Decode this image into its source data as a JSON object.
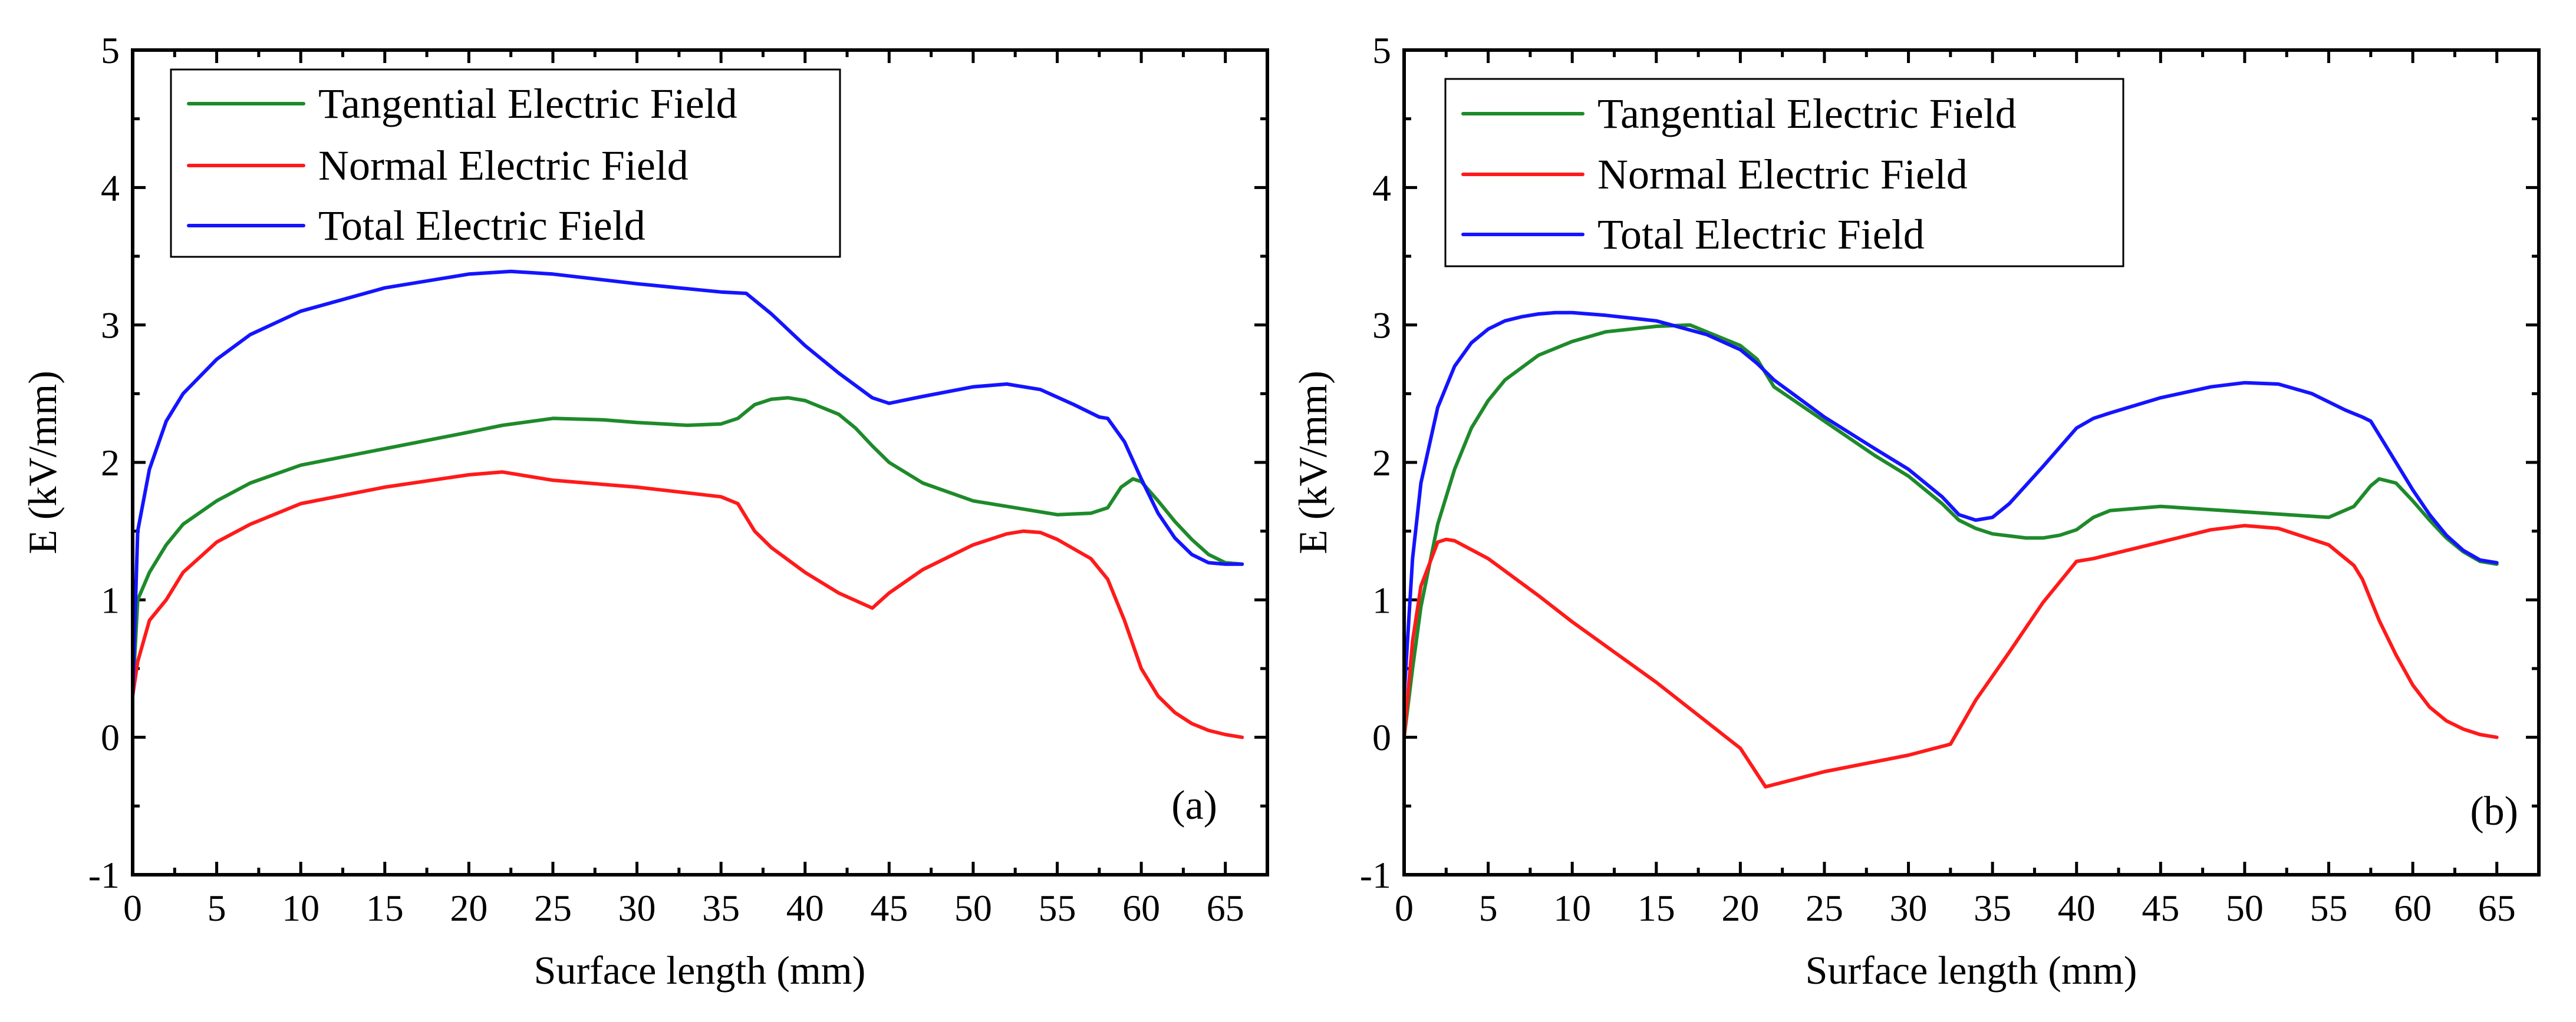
{
  "chart_data": [
    {
      "type": "line",
      "panel_label": "(a)",
      "xlabel": "Surface length (mm)",
      "ylabel": "E (kV/mm)",
      "xlim": [
        0,
        67.5
      ],
      "ylim": [
        -1,
        5
      ],
      "xticks": [
        0,
        5,
        10,
        15,
        20,
        25,
        30,
        35,
        40,
        45,
        50,
        55,
        60,
        65
      ],
      "yticks": [
        -1,
        0,
        1,
        2,
        3,
        4,
        5
      ],
      "legend_position": "top-left",
      "series": [
        {
          "name": "Tangential Electric Field",
          "color": "#1e8a2a",
          "x": [
            0,
            0.3,
            1,
            2,
            3,
            5,
            7,
            10,
            15,
            20,
            22,
            25,
            28,
            30,
            33,
            35,
            36,
            37,
            38,
            39,
            40,
            42,
            43,
            44,
            45,
            47,
            50,
            53,
            55,
            57,
            58,
            58.8,
            59.5,
            60,
            61,
            62,
            63,
            64,
            65,
            66
          ],
          "y": [
            0.3,
            1.0,
            1.2,
            1.4,
            1.55,
            1.72,
            1.85,
            1.98,
            2.1,
            2.22,
            2.27,
            2.32,
            2.31,
            2.29,
            2.27,
            2.28,
            2.32,
            2.42,
            2.46,
            2.47,
            2.45,
            2.35,
            2.25,
            2.12,
            2.0,
            1.85,
            1.72,
            1.66,
            1.62,
            1.63,
            1.67,
            1.82,
            1.88,
            1.86,
            1.72,
            1.57,
            1.44,
            1.33,
            1.27,
            1.26
          ]
        },
        {
          "name": "Normal Electric Field",
          "color": "#ff1a1a",
          "x": [
            0,
            0.3,
            1,
            2,
            3,
            5,
            7,
            10,
            15,
            20,
            22,
            25,
            30,
            35,
            36,
            37,
            38,
            40,
            42,
            44,
            45,
            47,
            50,
            52,
            53,
            54,
            55,
            57,
            58,
            59,
            60,
            61,
            62,
            63,
            64,
            65,
            66
          ],
          "y": [
            0.3,
            0.55,
            0.85,
            1.0,
            1.2,
            1.42,
            1.55,
            1.7,
            1.82,
            1.91,
            1.93,
            1.87,
            1.82,
            1.75,
            1.7,
            1.5,
            1.38,
            1.2,
            1.05,
            0.94,
            1.05,
            1.22,
            1.4,
            1.48,
            1.5,
            1.49,
            1.44,
            1.3,
            1.15,
            0.85,
            0.5,
            0.3,
            0.18,
            0.1,
            0.05,
            0.02,
            0.0
          ]
        },
        {
          "name": "Total Electric Field",
          "color": "#1414ff",
          "x": [
            0,
            0.3,
            1,
            2,
            3,
            5,
            7,
            10,
            15,
            20,
            22.5,
            25,
            30,
            35,
            36.5,
            38,
            40,
            42,
            44,
            45,
            47,
            50,
            52,
            54,
            56,
            57.5,
            58,
            59,
            60,
            61,
            62,
            63,
            64,
            65,
            66
          ],
          "y": [
            0.3,
            1.5,
            1.95,
            2.3,
            2.5,
            2.75,
            2.93,
            3.1,
            3.27,
            3.37,
            3.39,
            3.37,
            3.3,
            3.24,
            3.23,
            3.08,
            2.85,
            2.65,
            2.47,
            2.43,
            2.48,
            2.55,
            2.57,
            2.53,
            2.42,
            2.33,
            2.32,
            2.15,
            1.88,
            1.63,
            1.45,
            1.33,
            1.27,
            1.26,
            1.26
          ]
        }
      ]
    },
    {
      "type": "line",
      "panel_label": "(b)",
      "xlabel": "Surface length (mm)",
      "ylabel": "E (kV/mm)",
      "xlim": [
        0,
        67.5
      ],
      "ylim": [
        -1,
        5
      ],
      "xticks": [
        0,
        5,
        10,
        15,
        20,
        25,
        30,
        35,
        40,
        45,
        50,
        55,
        60,
        65
      ],
      "yticks": [
        -1,
        0,
        1,
        2,
        3,
        4,
        5
      ],
      "legend_position": "top-left",
      "series": [
        {
          "name": "Tangential Electric Field",
          "color": "#1e8a2a",
          "x": [
            0,
            0.5,
            1,
            2,
            3,
            4,
            5,
            6,
            8,
            10,
            12,
            15,
            17,
            20,
            21,
            22,
            25,
            28,
            30,
            32,
            33,
            34,
            35,
            37,
            38,
            39,
            40,
            41,
            42,
            45,
            50,
            55,
            56.5,
            57.5,
            58,
            59,
            60,
            61,
            62,
            63,
            64,
            65
          ],
          "y": [
            0.0,
            0.5,
            0.95,
            1.55,
            1.95,
            2.25,
            2.45,
            2.6,
            2.78,
            2.88,
            2.95,
            2.99,
            3.0,
            2.85,
            2.75,
            2.55,
            2.3,
            2.05,
            1.9,
            1.7,
            1.58,
            1.52,
            1.48,
            1.45,
            1.45,
            1.47,
            1.51,
            1.6,
            1.65,
            1.68,
            1.64,
            1.6,
            1.68,
            1.83,
            1.88,
            1.85,
            1.72,
            1.58,
            1.45,
            1.35,
            1.28,
            1.26
          ]
        },
        {
          "name": "Normal Electric Field",
          "color": "#ff1a1a",
          "x": [
            0,
            0.5,
            1,
            2,
            2.5,
            3,
            5,
            8,
            10,
            15,
            20,
            21.5,
            25,
            30,
            32.5,
            34,
            36,
            38,
            40,
            41,
            43,
            45,
            48,
            50,
            52,
            55,
            56.5,
            57,
            58,
            59,
            60,
            61,
            62,
            63,
            64,
            65
          ],
          "y": [
            0.0,
            0.7,
            1.1,
            1.42,
            1.44,
            1.43,
            1.3,
            1.03,
            0.84,
            0.4,
            -0.08,
            -0.36,
            -0.25,
            -0.13,
            -0.05,
            0.27,
            0.62,
            0.98,
            1.28,
            1.3,
            1.36,
            1.42,
            1.51,
            1.54,
            1.52,
            1.4,
            1.25,
            1.15,
            0.85,
            0.6,
            0.38,
            0.22,
            0.12,
            0.06,
            0.02,
            0.0
          ]
        },
        {
          "name": "Total Electric Field",
          "color": "#1414ff",
          "x": [
            0,
            0.5,
            1,
            2,
            3,
            4,
            5,
            6,
            7,
            8,
            9,
            10,
            12,
            15,
            18,
            20,
            21,
            22,
            25,
            28,
            30,
            32,
            33,
            34,
            35,
            36,
            38,
            40,
            41,
            42,
            45,
            48,
            50,
            52,
            54,
            56,
            57,
            57.5,
            58,
            59,
            60,
            61,
            62,
            63,
            64,
            65
          ],
          "y": [
            0.3,
            1.3,
            1.85,
            2.4,
            2.7,
            2.87,
            2.97,
            3.03,
            3.06,
            3.08,
            3.09,
            3.09,
            3.07,
            3.03,
            2.93,
            2.82,
            2.72,
            2.6,
            2.33,
            2.1,
            1.95,
            1.75,
            1.62,
            1.58,
            1.6,
            1.7,
            1.97,
            2.25,
            2.32,
            2.36,
            2.47,
            2.55,
            2.58,
            2.57,
            2.5,
            2.38,
            2.33,
            2.3,
            2.2,
            2.0,
            1.8,
            1.62,
            1.47,
            1.36,
            1.29,
            1.27
          ]
        }
      ]
    }
  ]
}
